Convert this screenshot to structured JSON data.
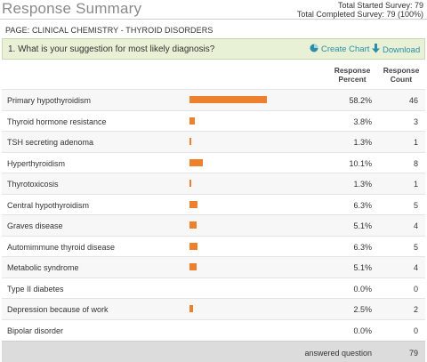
{
  "header": {
    "title": "Response Summary",
    "total_started": "Total Started Survey: 79",
    "total_completed": "Total Completed Survey: 79  (100%)"
  },
  "page_label": "PAGE: CLINICAL CHEMISTRY - THYROID DISORDERS",
  "question": {
    "text": "1. What is your suggestion for most likely diagnosis?",
    "create_chart_label": "Create Chart",
    "download_label": "Download"
  },
  "columns": {
    "percent_line1": "Response",
    "percent_line2": "Percent",
    "count_line1": "Response",
    "count_line2": "Count"
  },
  "colors": {
    "bar": "#ee7f2d",
    "link": "#2a8fa6",
    "question_bg": "#e8f0d6"
  },
  "chart_data": {
    "type": "bar",
    "categories": [
      "Primary hypothyroidism",
      "Thyroid hormone resistance",
      "TSH secreting adenoma",
      "Hyperthyroidism",
      "Thyrotoxicosis",
      "Central hypothyroidism",
      "Graves disease",
      "Automimmune thyroid disease",
      "Metabolic syndrome",
      "Type II diabetes",
      "Depression because of work",
      "Bipolar disorder"
    ],
    "values": [
      58.2,
      3.8,
      1.3,
      10.1,
      1.3,
      6.3,
      5.1,
      6.3,
      5.1,
      0.0,
      2.5,
      0.0
    ],
    "ylim": [
      0,
      100
    ]
  },
  "rows": [
    {
      "label": "Primary hypothyroidism",
      "percent": "58.2%",
      "count": "46"
    },
    {
      "label": "Thyroid hormone resistance",
      "percent": "3.8%",
      "count": "3"
    },
    {
      "label": "TSH secreting adenoma",
      "percent": "1.3%",
      "count": "1"
    },
    {
      "label": "Hyperthyroidism",
      "percent": "10.1%",
      "count": "8"
    },
    {
      "label": "Thyrotoxicosis",
      "percent": "1.3%",
      "count": "1"
    },
    {
      "label": "Central hypothyroidism",
      "percent": "6.3%",
      "count": "5"
    },
    {
      "label": "Graves disease",
      "percent": "5.1%",
      "count": "4"
    },
    {
      "label": "Automimmune thyroid disease",
      "percent": "6.3%",
      "count": "5"
    },
    {
      "label": "Metabolic syndrome",
      "percent": "5.1%",
      "count": "4"
    },
    {
      "label": "Type II diabetes",
      "percent": "0.0%",
      "count": "0"
    },
    {
      "label": "Depression because of work",
      "percent": "2.5%",
      "count": "2"
    },
    {
      "label": "Bipolar disorder",
      "percent": "0.0%",
      "count": "0"
    }
  ],
  "footer": {
    "label": "answered question",
    "value": "79"
  }
}
